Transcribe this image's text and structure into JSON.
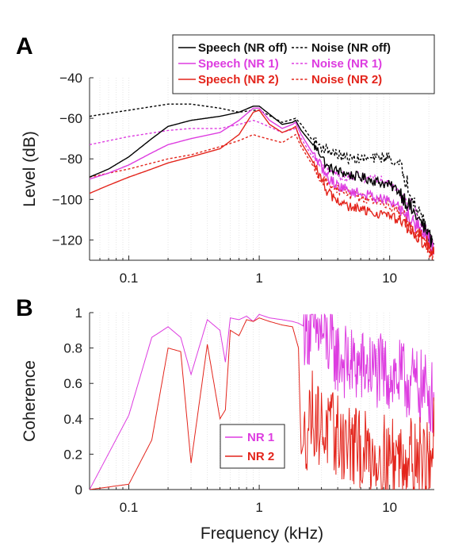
{
  "chart_data": [
    {
      "panel": "A",
      "type": "line",
      "xscale": "log",
      "xlim": [
        0.05,
        22
      ],
      "ylim": [
        -130,
        -40
      ],
      "xticks": [
        "0.1",
        "1",
        "10"
      ],
      "yticks": [
        "−40",
        "−60",
        "−80",
        "−100",
        "−120"
      ],
      "xlabel": "",
      "ylabel": "Level (dB)",
      "grid": "x-minor",
      "legend": "top-right, two columns",
      "series": [
        {
          "name": "Speech (NR off)",
          "color": "#000000",
          "style": "solid",
          "x": [
            0.05,
            0.07,
            0.1,
            0.15,
            0.2,
            0.3,
            0.5,
            0.7,
            0.9,
            1.0,
            1.2,
            1.5,
            1.8,
            1.9,
            2.1,
            2.5,
            3.0,
            3.3,
            4.0,
            5.0,
            7.0,
            10.0,
            12.0,
            15.0,
            18.0,
            20.0,
            22.0
          ],
          "y": [
            -89,
            -85,
            -79,
            -70,
            -64,
            -61,
            -59,
            -57,
            -54,
            -54,
            -58,
            -63,
            -62,
            -61,
            -66,
            -72,
            -78,
            -84,
            -86,
            -88,
            -90,
            -93,
            -96,
            -106,
            -113,
            -118,
            -124
          ]
        },
        {
          "name": "Noise (NR off)",
          "color": "#000000",
          "style": "dashed",
          "x": [
            0.05,
            0.1,
            0.2,
            0.3,
            0.5,
            0.7,
            0.9,
            1.0,
            1.5,
            1.9,
            2.1,
            2.5,
            3.0,
            4.0,
            5.0,
            7.0,
            10.0,
            12.0,
            15.0,
            18.0,
            22.0
          ],
          "y": [
            -59,
            -56,
            -53,
            -53,
            -55,
            -57,
            -56,
            -56,
            -62,
            -60,
            -63,
            -70,
            -74,
            -78,
            -80,
            -80,
            -79,
            -84,
            -98,
            -110,
            -122
          ]
        },
        {
          "name": "Speech (NR 1)",
          "color": "#dd3ce0",
          "style": "solid",
          "x": [
            0.05,
            0.07,
            0.1,
            0.15,
            0.2,
            0.3,
            0.5,
            0.7,
            0.9,
            1.0,
            1.2,
            1.5,
            1.8,
            1.9,
            2.1,
            2.5,
            3.0,
            3.3,
            4.0,
            5.0,
            7.0,
            10.0,
            12.0,
            15.0,
            18.0,
            20.0,
            22.0
          ],
          "y": [
            -90,
            -87,
            -83,
            -77,
            -73,
            -70,
            -67,
            -61,
            -55,
            -55,
            -61,
            -65,
            -63,
            -62,
            -68,
            -76,
            -84,
            -89,
            -93,
            -96,
            -98,
            -101,
            -104,
            -110,
            -116,
            -120,
            -125
          ]
        },
        {
          "name": "Noise (NR 1)",
          "color": "#dd3ce0",
          "style": "dashed",
          "x": [
            0.05,
            0.1,
            0.2,
            0.3,
            0.5,
            0.7,
            0.9,
            1.0,
            1.5,
            1.9,
            2.1,
            2.5,
            3.0,
            4.0,
            5.0,
            7.0,
            10.0,
            12.0,
            15.0,
            18.0,
            22.0
          ],
          "y": [
            -73,
            -69,
            -66,
            -65,
            -65,
            -63,
            -61,
            -62,
            -67,
            -65,
            -70,
            -78,
            -84,
            -88,
            -89,
            -89,
            -91,
            -96,
            -105,
            -114,
            -124
          ]
        },
        {
          "name": "Speech (NR 2)",
          "color": "#e3241b",
          "style": "solid",
          "x": [
            0.05,
            0.07,
            0.1,
            0.15,
            0.2,
            0.3,
            0.5,
            0.7,
            0.9,
            1.0,
            1.2,
            1.5,
            1.8,
            1.9,
            2.1,
            2.5,
            3.0,
            3.3,
            4.0,
            5.0,
            7.0,
            10.0,
            12.0,
            15.0,
            18.0,
            20.0,
            22.0
          ],
          "y": [
            -97,
            -93,
            -89,
            -85,
            -82,
            -79,
            -75,
            -68,
            -57,
            -56,
            -63,
            -67,
            -65,
            -64,
            -72,
            -80,
            -90,
            -96,
            -101,
            -104,
            -106,
            -108,
            -111,
            -116,
            -120,
            -123,
            -127
          ]
        },
        {
          "name": "Noise (NR 2)",
          "color": "#e3241b",
          "style": "dashed",
          "x": [
            0.05,
            0.1,
            0.2,
            0.3,
            0.5,
            0.7,
            0.9,
            1.0,
            1.5,
            1.9,
            2.1,
            2.5,
            3.0,
            4.0,
            5.0,
            7.0,
            10.0,
            12.0,
            15.0,
            18.0,
            22.0
          ],
          "y": [
            -89,
            -85,
            -80,
            -78,
            -74,
            -71,
            -68,
            -69,
            -72,
            -68,
            -74,
            -82,
            -90,
            -95,
            -98,
            -100,
            -103,
            -107,
            -114,
            -120,
            -127
          ]
        }
      ]
    },
    {
      "panel": "B",
      "type": "line",
      "xscale": "log",
      "xlim": [
        0.05,
        22
      ],
      "ylim": [
        0,
        1
      ],
      "xticks": [
        "0.1",
        "1",
        "10"
      ],
      "yticks": [
        "0",
        "0.2",
        "0.4",
        "0.6",
        "0.8",
        "1"
      ],
      "xlabel": "Frequency (kHz)",
      "ylabel": "Coherence",
      "grid": "x-minor",
      "legend": "lower-center",
      "series": [
        {
          "name": "NR 1",
          "color": "#dd3ce0",
          "style": "solid",
          "x": [
            0.05,
            0.1,
            0.15,
            0.2,
            0.25,
            0.3,
            0.4,
            0.5,
            0.55,
            0.6,
            0.7,
            0.8,
            0.9,
            1.0,
            1.2,
            1.5,
            1.8,
            2.0,
            2.5,
            3.0,
            4.0,
            5.0,
            7.0,
            10.0,
            15.0,
            20.0,
            22.0
          ],
          "y": [
            0.0,
            0.42,
            0.86,
            0.92,
            0.86,
            0.65,
            0.96,
            0.9,
            0.72,
            0.97,
            0.96,
            0.98,
            0.95,
            0.99,
            0.97,
            0.96,
            0.95,
            0.94,
            0.9,
            0.88,
            0.75,
            0.7,
            0.68,
            0.65,
            0.6,
            0.55,
            0.5
          ]
        },
        {
          "name": "NR 2",
          "color": "#e3241b",
          "style": "solid",
          "x": [
            0.05,
            0.1,
            0.15,
            0.2,
            0.25,
            0.3,
            0.4,
            0.5,
            0.55,
            0.6,
            0.7,
            0.8,
            0.9,
            1.0,
            1.2,
            1.5,
            1.8,
            2.0,
            2.1,
            2.5,
            3.0,
            4.0,
            5.0,
            7.0,
            10.0,
            15.0,
            20.0,
            22.0
          ],
          "y": [
            0.0,
            0.03,
            0.28,
            0.8,
            0.78,
            0.15,
            0.82,
            0.4,
            0.45,
            0.9,
            0.87,
            0.96,
            0.95,
            0.97,
            0.95,
            0.93,
            0.92,
            0.8,
            0.2,
            0.45,
            0.35,
            0.3,
            0.25,
            0.2,
            0.18,
            0.2,
            0.15,
            0.3
          ]
        }
      ]
    }
  ],
  "labels": {
    "panelA": "A",
    "panelB": "B"
  }
}
